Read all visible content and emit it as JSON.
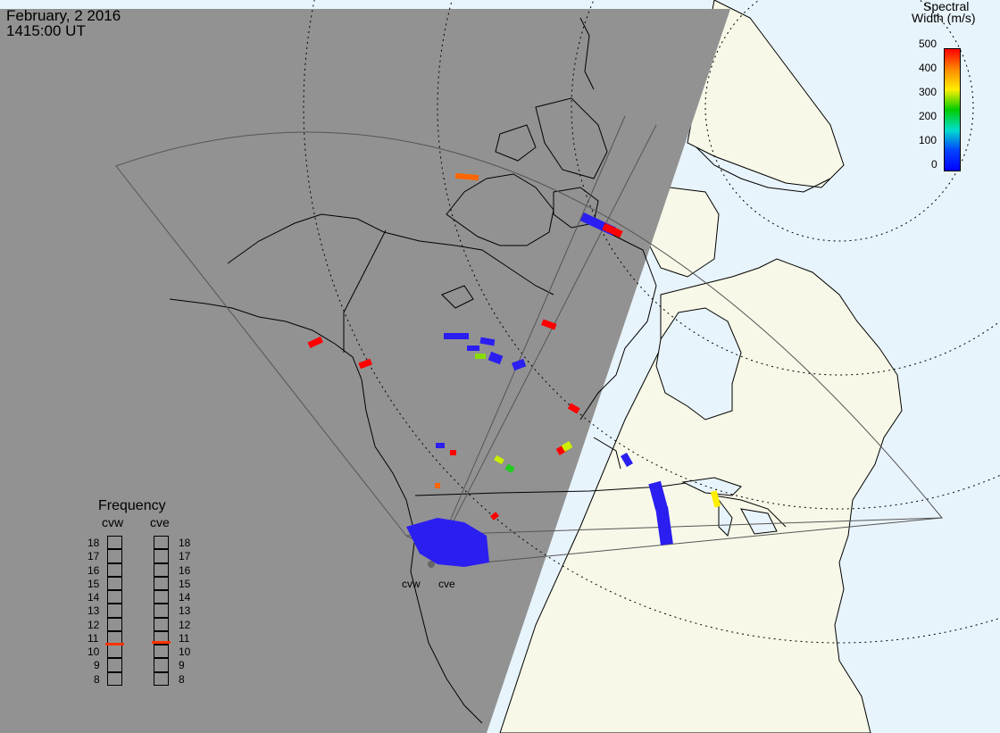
{
  "header": {
    "date": "February, 2 2016",
    "time": "1415:00 UT"
  },
  "colorbar": {
    "title_line1": "Spectral",
    "title_line2": "Width (m/s)",
    "ticks": [
      "500",
      "400",
      "300",
      "200",
      "100",
      "0"
    ],
    "colors": [
      "#ff0000",
      "#ff8800",
      "#ffee00",
      "#00cc00",
      "#00ddcc",
      "#0044ff",
      "#0000ff"
    ]
  },
  "radars": {
    "west": "cvw",
    "east": "cve"
  },
  "frequency_panel": {
    "title": "Frequency",
    "col_west": "cvw",
    "col_east": "cve",
    "scale": [
      "18",
      "17",
      "16",
      "15",
      "14",
      "13",
      "12",
      "11",
      "10",
      "9",
      "8"
    ],
    "west_value": 10.6,
    "east_value": 10.7,
    "marker_color": "#ff3300"
  },
  "map_colors": {
    "night": "#929292",
    "day_land": "#f8f8e8",
    "day_water": "#e8f4fb",
    "scatter_low": "#2a1ef0"
  }
}
